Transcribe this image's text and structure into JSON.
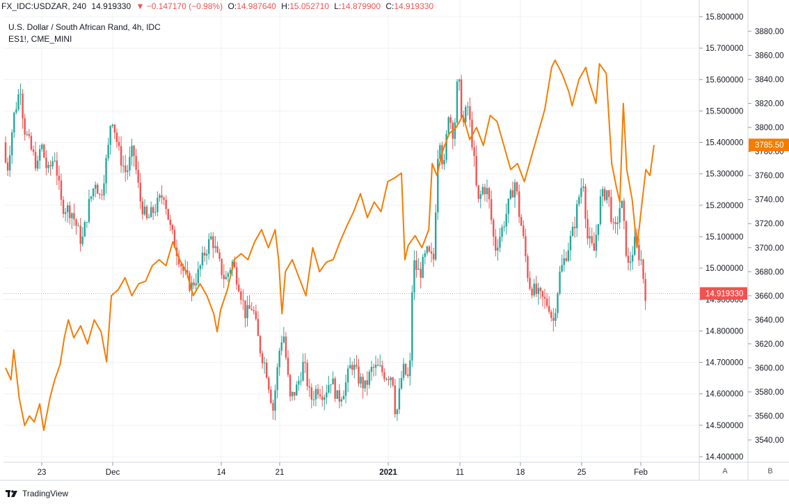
{
  "header": {
    "symbol": "FX_IDC:USDZAR, 240",
    "last": "14.919330",
    "change": "▼ −0.147170 (−0.98%)",
    "o_label": "O:",
    "o_value": "14.987640",
    "h_label": "H:",
    "h_value": "15.052710",
    "l_label": "L:",
    "l_value": "14.879900",
    "c_label": "C:",
    "c_value": "14.919330"
  },
  "legend": {
    "title": "U.S. Dollar / South African Rand, 4h, IDC",
    "overlay": "ES1!, CME_MINI"
  },
  "footer": {
    "brand": "TradingView"
  },
  "scale_buttons": [
    "A",
    "B"
  ],
  "colors": {
    "up": "#26a69a",
    "down": "#ef5350",
    "overlay": "#f57c00",
    "grid": "#eef0f3",
    "axis_text": "#131722"
  },
  "icons": [
    "tradingview-logo-icon"
  ],
  "chart_data": {
    "type": "candlestick",
    "title": "U.S. Dollar / South African Rand, 4h, IDC",
    "x_ticks": [
      "23",
      "Dec",
      "14",
      "21",
      "2021",
      "11",
      "18",
      "25",
      "Feb"
    ],
    "y_left_ticks": [
      "15.800000",
      "15.700000",
      "15.600000",
      "15.500000",
      "15.400000",
      "15.300000",
      "15.200000",
      "15.100000",
      "15.000000",
      "14.900000",
      "14.800000",
      "14.700000",
      "14.600000",
      "14.500000",
      "14.400000"
    ],
    "y_left_range": [
      14.4,
      15.8
    ],
    "y_right_ticks": [
      "3880.00",
      "3860.00",
      "3840.00",
      "3820.00",
      "3800.00",
      "3780.00",
      "3760.00",
      "3740.00",
      "3720.00",
      "3700.00",
      "3680.00",
      "3660.00",
      "3640.00",
      "3620.00",
      "3600.00",
      "3580.00",
      "3560.00",
      "3540.00"
    ],
    "y_right_range": [
      3530,
      3885
    ],
    "last_price_label": "14.919330",
    "overlay_last_label": "3785.50",
    "usdzar_path": [
      {
        "t": 0,
        "v": 15.4
      },
      {
        "t": 0.5,
        "v": 15.3
      },
      {
        "t": 1.5,
        "v": 15.48
      },
      {
        "t": 2.5,
        "v": 15.58
      },
      {
        "t": 3.0,
        "v": 15.45
      },
      {
        "t": 4.0,
        "v": 15.38
      },
      {
        "t": 5.0,
        "v": 15.32
      },
      {
        "t": 5.5,
        "v": 15.4
      },
      {
        "t": 6.5,
        "v": 15.3
      },
      {
        "t": 7.5,
        "v": 15.36
      },
      {
        "t": 8.5,
        "v": 15.2
      },
      {
        "t": 10,
        "v": 15.18
      },
      {
        "t": 11.5,
        "v": 15.08
      },
      {
        "t": 12.5,
        "v": 15.2
      },
      {
        "t": 13.5,
        "v": 15.28
      },
      {
        "t": 14.2,
        "v": 15.22
      },
      {
        "t": 15.5,
        "v": 15.4
      },
      {
        "t": 15.8,
        "v": 15.5
      },
      {
        "t": 17,
        "v": 15.36
      },
      {
        "t": 18,
        "v": 15.3
      },
      {
        "t": 19,
        "v": 15.38
      },
      {
        "t": 20,
        "v": 15.22
      },
      {
        "t": 21,
        "v": 15.15
      },
      {
        "t": 22.5,
        "v": 15.2
      },
      {
        "t": 23.5,
        "v": 15.24
      },
      {
        "t": 24.5,
        "v": 15.12
      },
      {
        "t": 25.5,
        "v": 15.05
      },
      {
        "t": 26.5,
        "v": 14.98
      },
      {
        "t": 27.5,
        "v": 14.94
      },
      {
        "t": 28.5,
        "v": 14.98
      },
      {
        "t": 29.5,
        "v": 15.05
      },
      {
        "t": 30.5,
        "v": 15.1
      },
      {
        "t": 31.5,
        "v": 15.02
      },
      {
        "t": 32.5,
        "v": 14.96
      },
      {
        "t": 33.5,
        "v": 15.02
      },
      {
        "t": 34.5,
        "v": 14.95
      },
      {
        "t": 35.5,
        "v": 14.85
      },
      {
        "t": 36.5,
        "v": 14.88
      },
      {
        "t": 37.5,
        "v": 14.75
      },
      {
        "t": 38.5,
        "v": 14.68
      },
      {
        "t": 39.5,
        "v": 14.55
      },
      {
        "t": 40.5,
        "v": 14.75
      },
      {
        "t": 41,
        "v": 14.8
      },
      {
        "t": 42,
        "v": 14.58
      },
      {
        "t": 43,
        "v": 14.62
      },
      {
        "t": 44,
        "v": 14.7
      },
      {
        "t": 45,
        "v": 14.58
      },
      {
        "t": 46,
        "v": 14.62
      },
      {
        "t": 47,
        "v": 14.6
      },
      {
        "t": 48,
        "v": 14.65
      },
      {
        "t": 49,
        "v": 14.58
      },
      {
        "t": 50,
        "v": 14.62
      },
      {
        "t": 51,
        "v": 14.7
      },
      {
        "t": 52,
        "v": 14.65
      },
      {
        "t": 53,
        "v": 14.62
      },
      {
        "t": 54,
        "v": 14.68
      },
      {
        "t": 55,
        "v": 14.68
      },
      {
        "t": 56,
        "v": 14.66
      },
      {
        "t": 57,
        "v": 14.66
      },
      {
        "t": 57.5,
        "v": 14.52
      },
      {
        "t": 58.5,
        "v": 14.68
      },
      {
        "t": 59.5,
        "v": 14.64
      },
      {
        "t": 60,
        "v": 15.02
      },
      {
        "t": 61,
        "v": 14.98
      },
      {
        "t": 62,
        "v": 15.05
      },
      {
        "t": 63,
        "v": 15.02
      },
      {
        "t": 63.8,
        "v": 15.45
      },
      {
        "t": 64.5,
        "v": 15.3
      },
      {
        "t": 65.2,
        "v": 15.5
      },
      {
        "t": 66,
        "v": 15.42
      },
      {
        "t": 66.6,
        "v": 15.62
      },
      {
        "t": 67.3,
        "v": 15.45
      },
      {
        "t": 68,
        "v": 15.52
      },
      {
        "t": 68.8,
        "v": 15.38
      },
      {
        "t": 69.5,
        "v": 15.2
      },
      {
        "t": 70.3,
        "v": 15.26
      },
      {
        "t": 71,
        "v": 15.24
      },
      {
        "t": 72,
        "v": 15.06
      },
      {
        "t": 73,
        "v": 15.12
      },
      {
        "t": 74,
        "v": 15.2
      },
      {
        "t": 75,
        "v": 15.28
      },
      {
        "t": 75.5,
        "v": 15.18
      },
      {
        "t": 76,
        "v": 15.12
      },
      {
        "t": 77,
        "v": 14.95
      },
      {
        "t": 78,
        "v": 14.92
      },
      {
        "t": 79,
        "v": 14.9
      },
      {
        "t": 80,
        "v": 14.88
      },
      {
        "t": 80.5,
        "v": 14.82
      },
      {
        "t": 81.5,
        "v": 14.98
      },
      {
        "t": 82.5,
        "v": 15.05
      },
      {
        "t": 83.5,
        "v": 15.12
      },
      {
        "t": 84.5,
        "v": 15.25
      },
      {
        "t": 85,
        "v": 15.28
      },
      {
        "t": 85.5,
        "v": 15.1
      },
      {
        "t": 86.5,
        "v": 15.05
      },
      {
        "t": 87.5,
        "v": 15.22
      },
      {
        "t": 88.5,
        "v": 15.25
      },
      {
        "t": 89.5,
        "v": 15.1
      },
      {
        "t": 90.5,
        "v": 15.22
      },
      {
        "t": 91.5,
        "v": 15.0
      },
      {
        "t": 92.5,
        "v": 15.08
      },
      {
        "t": 93.5,
        "v": 15.02
      },
      {
        "t": 94,
        "v": 14.92
      }
    ],
    "es_series": [
      {
        "t": 0,
        "v": 3600
      },
      {
        "t": 0.8,
        "v": 3590
      },
      {
        "t": 1.2,
        "v": 3615
      },
      {
        "t": 2.0,
        "v": 3575
      },
      {
        "t": 2.8,
        "v": 3552
      },
      {
        "t": 3.5,
        "v": 3560
      },
      {
        "t": 4.2,
        "v": 3555
      },
      {
        "t": 5.0,
        "v": 3570
      },
      {
        "t": 5.6,
        "v": 3548
      },
      {
        "t": 6.5,
        "v": 3575
      },
      {
        "t": 7.2,
        "v": 3590
      },
      {
        "t": 8.0,
        "v": 3603
      },
      {
        "t": 8.6,
        "v": 3625
      },
      {
        "t": 9.2,
        "v": 3640
      },
      {
        "t": 10,
        "v": 3625
      },
      {
        "t": 11,
        "v": 3635
      },
      {
        "t": 12,
        "v": 3620
      },
      {
        "t": 13,
        "v": 3640
      },
      {
        "t": 14,
        "v": 3630
      },
      {
        "t": 14.8,
        "v": 3605
      },
      {
        "t": 15.5,
        "v": 3660
      },
      {
        "t": 16.5,
        "v": 3665
      },
      {
        "t": 17.5,
        "v": 3675
      },
      {
        "t": 18.5,
        "v": 3660
      },
      {
        "t": 19.5,
        "v": 3670
      },
      {
        "t": 20.5,
        "v": 3672
      },
      {
        "t": 21.5,
        "v": 3685
      },
      {
        "t": 22.5,
        "v": 3690
      },
      {
        "t": 23.5,
        "v": 3685
      },
      {
        "t": 24.5,
        "v": 3705
      },
      {
        "t": 25.5,
        "v": 3690
      },
      {
        "t": 26.5,
        "v": 3680
      },
      {
        "t": 27.5,
        "v": 3660
      },
      {
        "t": 28.5,
        "v": 3670
      },
      {
        "t": 29.5,
        "v": 3660
      },
      {
        "t": 30.5,
        "v": 3645
      },
      {
        "t": 31.0,
        "v": 3630
      },
      {
        "t": 31.5,
        "v": 3648
      },
      {
        "t": 32.5,
        "v": 3665
      },
      {
        "t": 33.5,
        "v": 3690
      },
      {
        "t": 34.5,
        "v": 3695
      },
      {
        "t": 35.5,
        "v": 3690
      },
      {
        "t": 36.5,
        "v": 3705
      },
      {
        "t": 37.5,
        "v": 3715
      },
      {
        "t": 38.5,
        "v": 3700
      },
      {
        "t": 39.5,
        "v": 3715
      },
      {
        "t": 40.0,
        "v": 3690
      },
      {
        "t": 40.5,
        "v": 3645
      },
      {
        "t": 41.0,
        "v": 3680
      },
      {
        "t": 42.0,
        "v": 3690
      },
      {
        "t": 43.0,
        "v": 3675
      },
      {
        "t": 44.0,
        "v": 3660
      },
      {
        "t": 45.0,
        "v": 3700
      },
      {
        "t": 46.0,
        "v": 3680
      },
      {
        "t": 47.0,
        "v": 3688
      },
      {
        "t": 48.0,
        "v": 3690
      },
      {
        "t": 49.0,
        "v": 3705
      },
      {
        "t": 50.0,
        "v": 3718
      },
      {
        "t": 51.0,
        "v": 3730
      },
      {
        "t": 52.0,
        "v": 3745
      },
      {
        "t": 53.0,
        "v": 3725
      },
      {
        "t": 54.0,
        "v": 3738
      },
      {
        "t": 55.0,
        "v": 3730
      },
      {
        "t": 56.0,
        "v": 3755
      },
      {
        "t": 57.0,
        "v": 3758
      },
      {
        "t": 58.0,
        "v": 3762
      },
      {
        "t": 58.5,
        "v": 3690
      },
      {
        "t": 59.0,
        "v": 3702
      },
      {
        "t": 60.0,
        "v": 3710
      },
      {
        "t": 61.0,
        "v": 3700
      },
      {
        "t": 62.0,
        "v": 3715
      },
      {
        "t": 62.5,
        "v": 3770
      },
      {
        "t": 63.2,
        "v": 3760
      },
      {
        "t": 64.0,
        "v": 3780
      },
      {
        "t": 65.0,
        "v": 3795
      },
      {
        "t": 66.0,
        "v": 3800
      },
      {
        "t": 67.0,
        "v": 3810
      },
      {
        "t": 68.0,
        "v": 3790
      },
      {
        "t": 69.0,
        "v": 3800
      },
      {
        "t": 70.0,
        "v": 3785
      },
      {
        "t": 71.0,
        "v": 3810
      },
      {
        "t": 72.0,
        "v": 3805
      },
      {
        "t": 73.0,
        "v": 3785
      },
      {
        "t": 74.0,
        "v": 3765
      },
      {
        "t": 75.0,
        "v": 3770
      },
      {
        "t": 76.0,
        "v": 3755
      },
      {
        "t": 77.0,
        "v": 3775
      },
      {
        "t": 78.0,
        "v": 3795
      },
      {
        "t": 79.0,
        "v": 3815
      },
      {
        "t": 80.0,
        "v": 3850
      },
      {
        "t": 80.5,
        "v": 3856
      },
      {
        "t": 81.5,
        "v": 3845
      },
      {
        "t": 82.5,
        "v": 3830
      },
      {
        "t": 83.0,
        "v": 3818
      },
      {
        "t": 84.0,
        "v": 3840
      },
      {
        "t": 85.0,
        "v": 3850
      },
      {
        "t": 85.5,
        "v": 3838
      },
      {
        "t": 86.5,
        "v": 3820
      },
      {
        "t": 87.0,
        "v": 3853
      },
      {
        "t": 88.0,
        "v": 3845
      },
      {
        "t": 88.8,
        "v": 3770
      },
      {
        "t": 89.5,
        "v": 3750
      },
      {
        "t": 90.0,
        "v": 3738
      },
      {
        "t": 90.5,
        "v": 3820
      },
      {
        "t": 91.0,
        "v": 3765
      },
      {
        "t": 91.8,
        "v": 3740
      },
      {
        "t": 92.5,
        "v": 3700
      },
      {
        "t": 93.2,
        "v": 3735
      },
      {
        "t": 93.8,
        "v": 3765
      },
      {
        "t": 94.4,
        "v": 3760
      },
      {
        "t": 95.0,
        "v": 3785.5
      }
    ]
  }
}
